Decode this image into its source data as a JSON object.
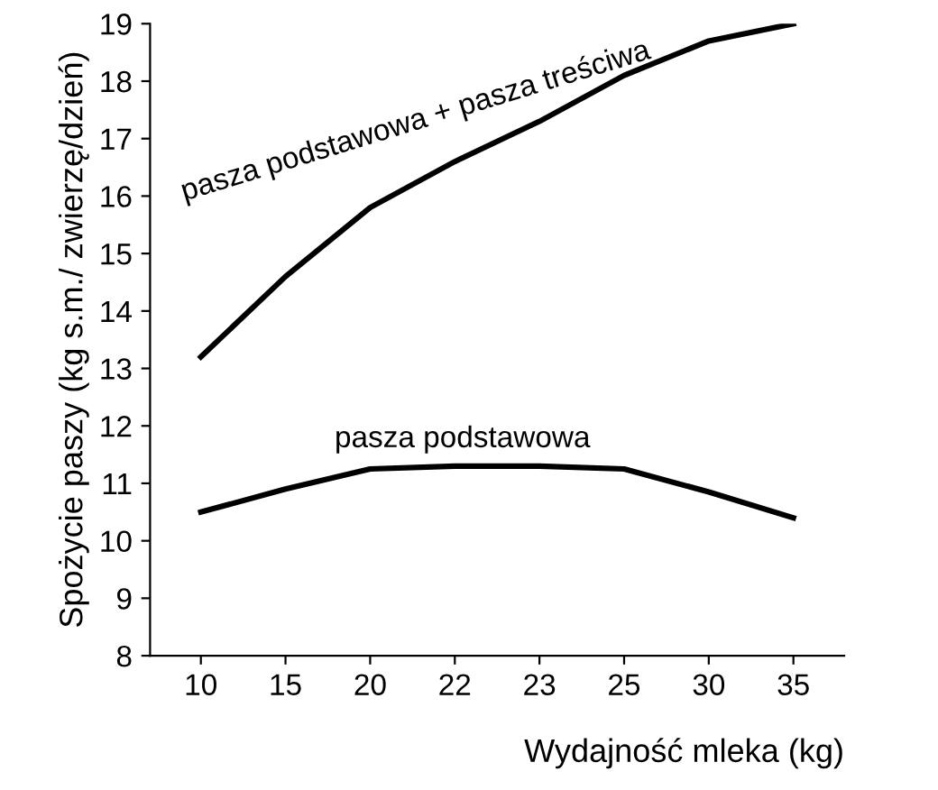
{
  "chart_data": {
    "type": "line",
    "xlabel": "Wydajność mleka (kg)",
    "ylabel": "Spożycie paszy (kg s.m./ zwierzę/dzień)",
    "categories": [
      "10",
      "15",
      "20",
      "22",
      "23",
      "25",
      "30",
      "35"
    ],
    "series": [
      {
        "name": "pasza podstawowa + pasza treściwa",
        "color": "#000000",
        "values": [
          13.2,
          14.6,
          15.8,
          16.6,
          17.3,
          18.1,
          18.7,
          19.0
        ]
      },
      {
        "name": "pasza podstawowa",
        "color": "#000000",
        "values": [
          10.5,
          10.9,
          11.25,
          11.3,
          11.3,
          11.25,
          10.85,
          10.4
        ]
      }
    ],
    "ylim": [
      8,
      19
    ],
    "yticks": [
      8,
      9,
      10,
      11,
      12,
      13,
      14,
      15,
      16,
      17,
      18,
      19
    ],
    "grid": false,
    "legend": false,
    "marker": "none",
    "line_style": "solid"
  }
}
